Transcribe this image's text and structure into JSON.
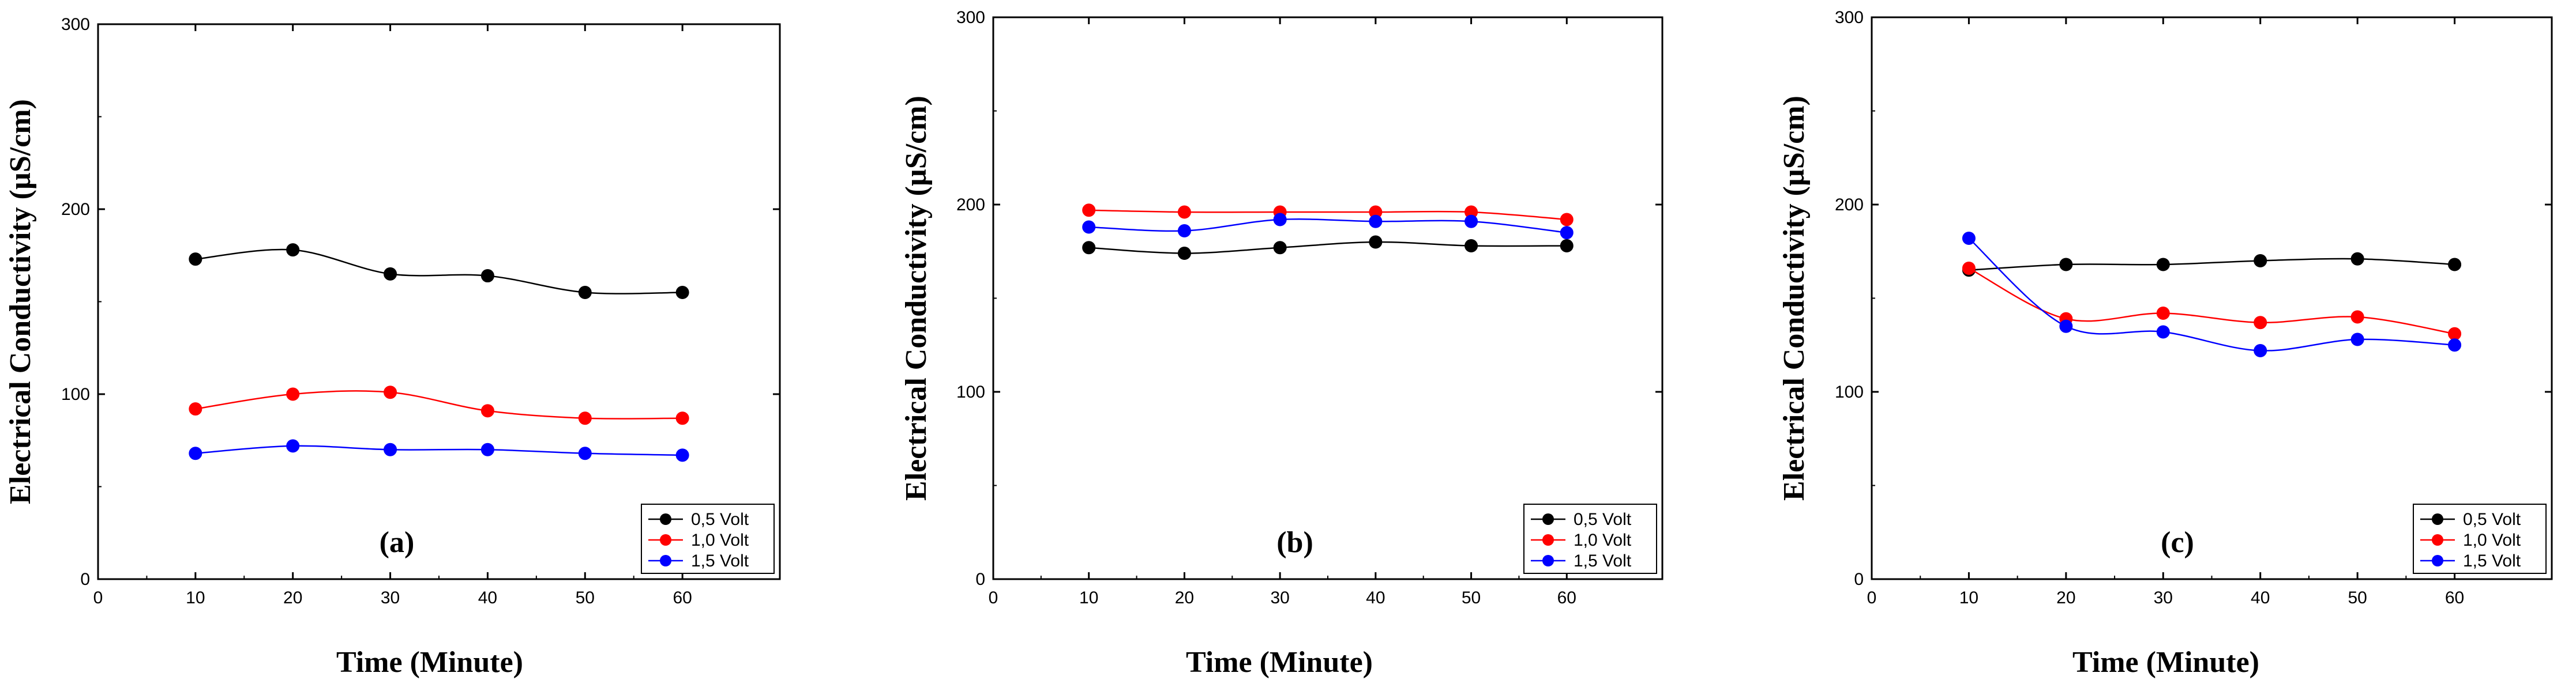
{
  "chart_data": [
    {
      "type": "line",
      "panel_label": "(a)",
      "xlabel": "Time (Minute)",
      "ylabel": "Electrical Conductivity (µS/cm)",
      "xlim": [
        0,
        70
      ],
      "ylim": [
        0,
        300
      ],
      "x_ticks": [
        0,
        10,
        20,
        30,
        40,
        50,
        60
      ],
      "y_ticks": [
        0,
        100,
        200,
        300
      ],
      "x": [
        10,
        20,
        30,
        40,
        50,
        60
      ],
      "legend_position": "bottom-right",
      "series": [
        {
          "name": "0,5 Volt",
          "color": "#000000",
          "values": [
            173,
            178,
            165,
            164,
            155,
            155
          ]
        },
        {
          "name": "1,0 Volt",
          "color": "#ff0000",
          "values": [
            92,
            100,
            101,
            91,
            87,
            87
          ]
        },
        {
          "name": "1,5 Volt",
          "color": "#0000ff",
          "values": [
            68,
            72,
            70,
            70,
            68,
            67
          ]
        }
      ]
    },
    {
      "type": "line",
      "panel_label": "(b)",
      "xlabel": "Time (Minute)",
      "ylabel": "Electrical Conductivity (µS/cm)",
      "xlim": [
        0,
        70
      ],
      "ylim": [
        0,
        300
      ],
      "x_ticks": [
        0,
        10,
        20,
        30,
        40,
        50,
        60
      ],
      "y_ticks": [
        0,
        100,
        200,
        300
      ],
      "x": [
        10,
        20,
        30,
        40,
        50,
        60
      ],
      "legend_position": "bottom-right",
      "series": [
        {
          "name": "0,5 Volt",
          "color": "#000000",
          "values": [
            177,
            174,
            177,
            180,
            178,
            178
          ]
        },
        {
          "name": "1,0 Volt",
          "color": "#ff0000",
          "values": [
            197,
            196,
            196,
            196,
            196,
            192
          ]
        },
        {
          "name": "1,5 Volt",
          "color": "#0000ff",
          "values": [
            188,
            186,
            192,
            191,
            191,
            185
          ]
        }
      ]
    },
    {
      "type": "line",
      "panel_label": "(c)",
      "xlabel": "Time (Minute)",
      "ylabel": "Electrical Conductivity (µS/cm)",
      "xlim": [
        0,
        70
      ],
      "ylim": [
        0,
        300
      ],
      "x_ticks": [
        0,
        10,
        20,
        30,
        40,
        50,
        60
      ],
      "y_ticks": [
        0,
        100,
        200,
        300
      ],
      "x": [
        10,
        20,
        30,
        40,
        50,
        60
      ],
      "legend_position": "bottom-right",
      "series": [
        {
          "name": "0,5 Volt",
          "color": "#000000",
          "values": [
            165,
            168,
            168,
            170,
            171,
            168
          ]
        },
        {
          "name": "1,0 Volt",
          "color": "#ff0000",
          "values": [
            166,
            139,
            142,
            137,
            140,
            131
          ]
        },
        {
          "name": "1,5 Volt",
          "color": "#0000ff",
          "values": [
            182,
            135,
            132,
            122,
            128,
            125
          ]
        }
      ]
    }
  ]
}
